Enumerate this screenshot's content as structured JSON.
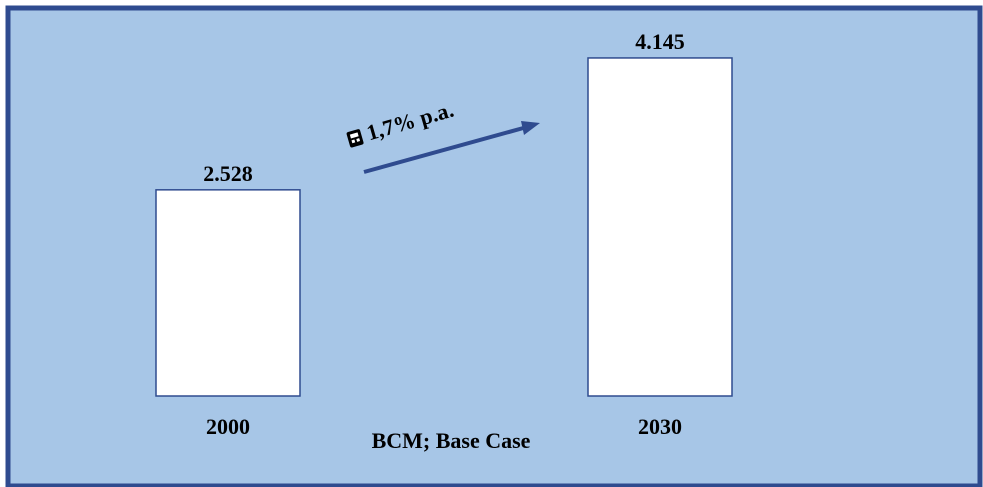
{
  "colors": {
    "background": "#a7c6e7",
    "border": "#2f4b8f",
    "bar_fill": "#ffffff",
    "bar_stroke": "#2f4b8f",
    "arrow": "#2f4b8f",
    "text": "#000000"
  },
  "chart_data": {
    "type": "bar",
    "categories": [
      "2000",
      "2030"
    ],
    "values": [
      2528,
      4145
    ],
    "value_labels": [
      "2.528",
      "4.145"
    ],
    "unit_label": "BCM; Base Case",
    "growth_annotation": {
      "icon": "calculator-icon",
      "text": "1,7% p.a."
    },
    "ylim": [
      0,
      4500
    ],
    "grid": false,
    "legend": "none"
  }
}
